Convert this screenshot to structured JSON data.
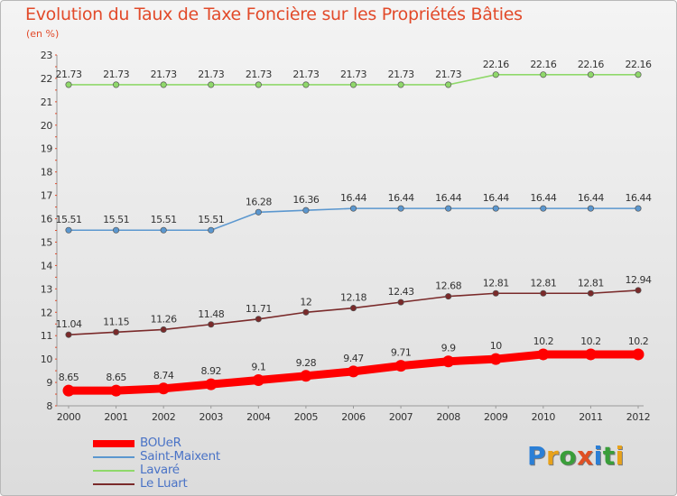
{
  "title": "Evolution du Taux de Taxe Foncière sur les Propriétés Bâties",
  "subtitle": "(en %)",
  "logo": {
    "text": "Proxiti",
    "letters": [
      {
        "ch": "P",
        "color": "#2b7fd6"
      },
      {
        "ch": "r",
        "color": "#e8a21a"
      },
      {
        "ch": "o",
        "color": "#3a9e3a"
      },
      {
        "ch": "x",
        "color": "#e05024"
      },
      {
        "ch": "i",
        "color": "#2b7fd6"
      },
      {
        "ch": "t",
        "color": "#3a9e3a"
      },
      {
        "ch": "i",
        "color": "#e8a21a"
      }
    ]
  },
  "chart_data": {
    "type": "line",
    "title": "Evolution du Taux de Taxe Foncière sur les Propriétés Bâties",
    "ylabel": "(en %)",
    "xlabel": "",
    "categories": [
      "2000",
      "2001",
      "2002",
      "2003",
      "2004",
      "2005",
      "2006",
      "2007",
      "2008",
      "2009",
      "2010",
      "2011",
      "2012"
    ],
    "ylim": [
      8,
      23
    ],
    "yticks": [
      8,
      9,
      10,
      11,
      12,
      13,
      14,
      15,
      16,
      17,
      18,
      19,
      20,
      21,
      22,
      23
    ],
    "grid": false,
    "legend_position": "bottom-left",
    "series": [
      {
        "name": "BOUeR",
        "color": "#ff0000",
        "values": [
          8.65,
          8.65,
          8.74,
          8.92,
          9.1,
          9.28,
          9.47,
          9.71,
          9.9,
          10,
          10.2,
          10.2,
          10.2
        ],
        "labels": [
          "8.65",
          "8.65",
          "8.74",
          "8.92",
          "9.1",
          "9.28",
          "9.47",
          "9.71",
          "9.9",
          "10",
          "10.2",
          "10.2",
          "10.2"
        ]
      },
      {
        "name": "Saint-Maixent",
        "color": "#5b97cf",
        "values": [
          15.51,
          15.51,
          15.51,
          15.51,
          16.28,
          16.36,
          16.44,
          16.44,
          16.44,
          16.44,
          16.44,
          16.44,
          16.44
        ],
        "labels": [
          "15.51",
          "15.51",
          "15.51",
          "15.51",
          "16.28",
          "16.36",
          "16.44",
          "16.44",
          "16.44",
          "16.44",
          "16.44",
          "16.44",
          "16.44"
        ]
      },
      {
        "name": "Lavaré",
        "color": "#8fd86a",
        "values": [
          21.73,
          21.73,
          21.73,
          21.73,
          21.73,
          21.73,
          21.73,
          21.73,
          21.73,
          22.16,
          22.16,
          22.16,
          22.16
        ],
        "labels": [
          "21.73",
          "21.73",
          "21.73",
          "21.73",
          "21.73",
          "21.73",
          "21.73",
          "21.73",
          "21.73",
          "22.16",
          "22.16",
          "22.16",
          "22.16"
        ]
      },
      {
        "name": "Le Luart",
        "color": "#7a2a2a",
        "values": [
          11.04,
          11.15,
          11.26,
          11.48,
          11.71,
          12,
          12.18,
          12.43,
          12.68,
          12.81,
          12.81,
          12.81,
          12.94
        ],
        "labels": [
          "11.04",
          "11.15",
          "11.26",
          "11.48",
          "11.71",
          "12",
          "12.18",
          "12.43",
          "12.68",
          "12.81",
          "12.81",
          "12.81",
          "12.94"
        ]
      }
    ]
  }
}
